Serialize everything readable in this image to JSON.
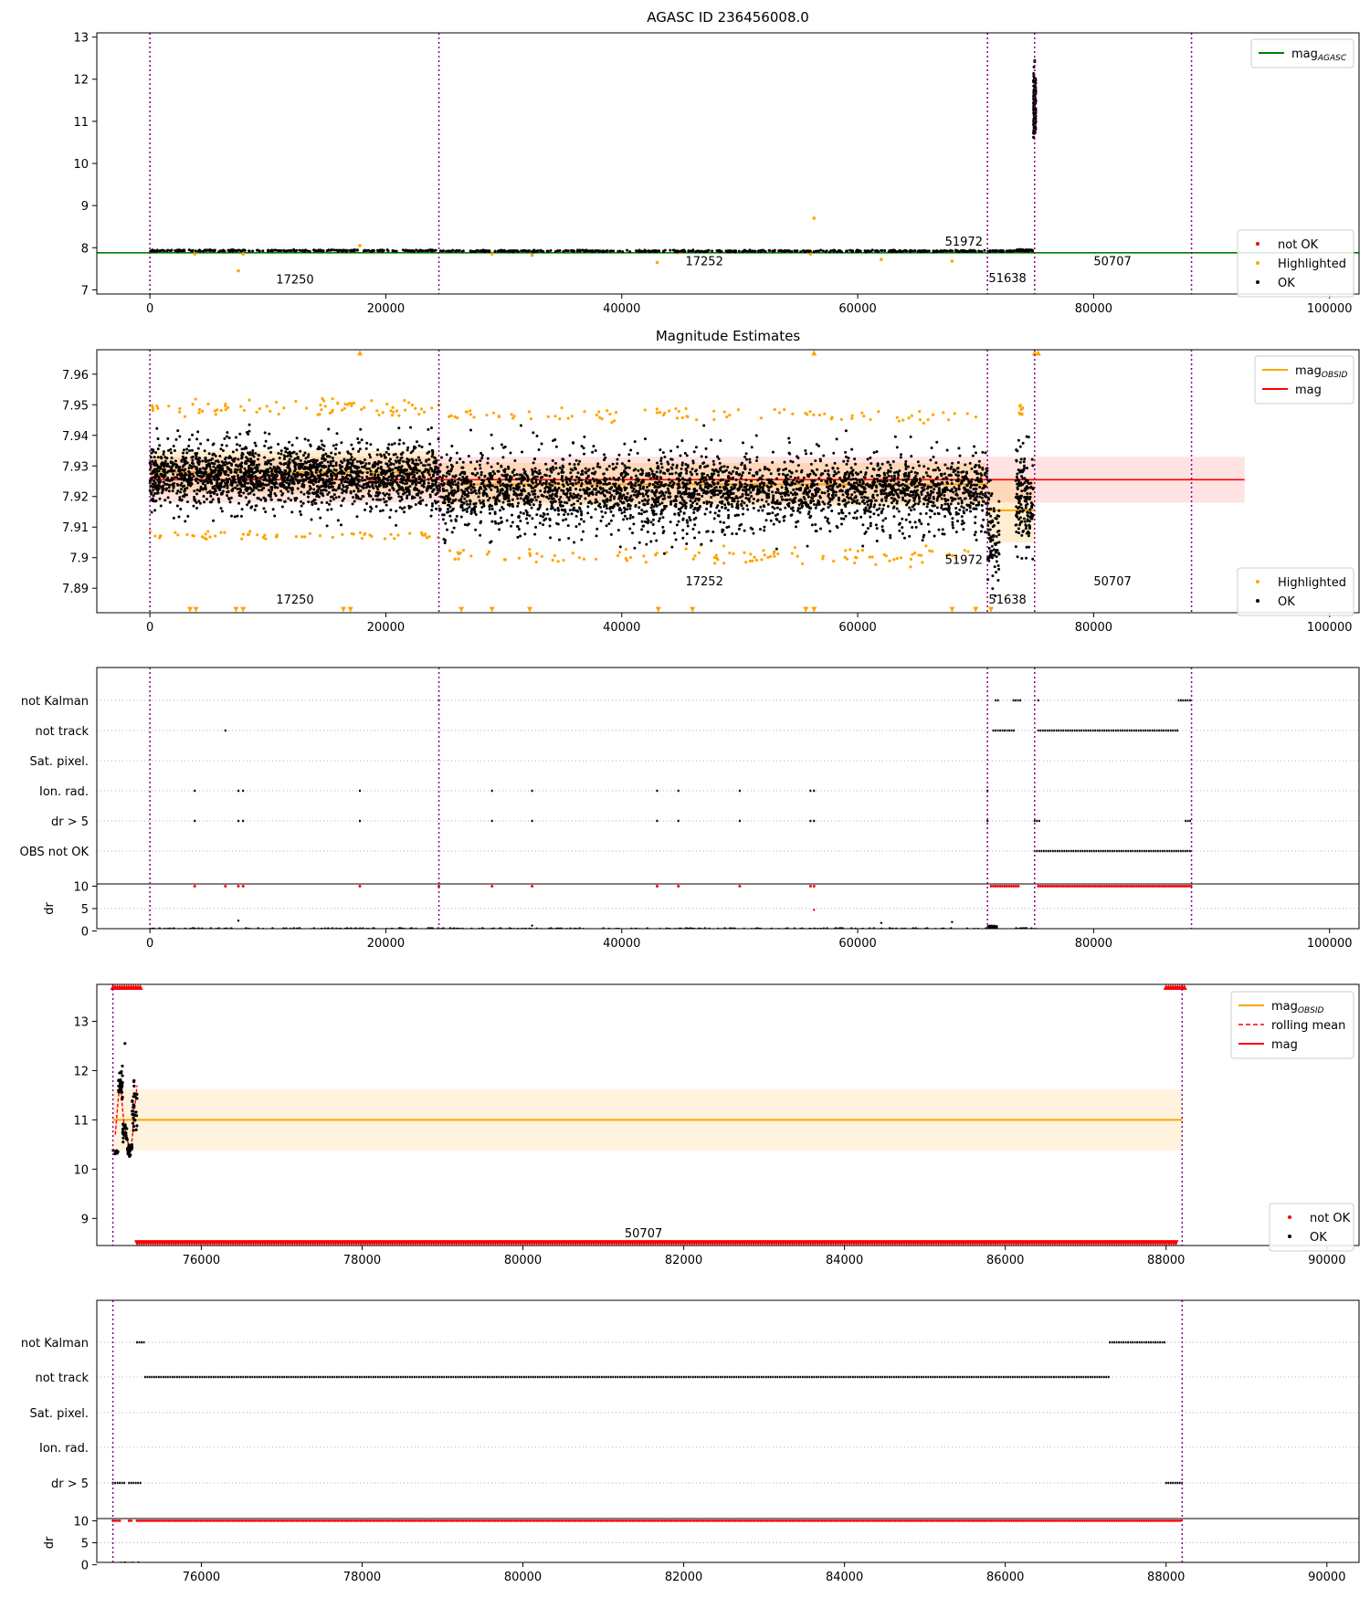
{
  "panels": [
    {
      "id": "agasc",
      "title": "AGASC ID 236456008.0",
      "xlim": [
        -4500,
        102500
      ],
      "ylim": [
        6.9,
        13.1
      ],
      "yticks": [
        7,
        8,
        9,
        10,
        11,
        12,
        13
      ],
      "xticks": [
        0,
        20000,
        40000,
        60000,
        80000,
        100000
      ],
      "vlines": [
        0,
        24500,
        71000,
        75000,
        88300
      ],
      "hline": {
        "y": 7.88,
        "color": "#008000",
        "x0": -4500,
        "x1": 102500
      },
      "segments": [
        {
          "x0": 0,
          "x1": 24500,
          "y0": 7.9,
          "y1": 7.96,
          "n": 260,
          "color": "#000000"
        },
        {
          "x0": 24500,
          "x1": 71000,
          "y0": 7.89,
          "y1": 7.95,
          "n": 480,
          "color": "#000000"
        },
        {
          "x0": 71000,
          "x1": 73400,
          "y0": 7.9,
          "y1": 7.94,
          "n": 40,
          "color": "#000000"
        },
        {
          "x0": 73400,
          "x1": 74900,
          "y0": 7.9,
          "y1": 7.97,
          "n": 40,
          "color": "#000000"
        },
        {
          "x0": 74900,
          "x1": 75100,
          "y0": 10.2,
          "y1": 12.6,
          "n": 160,
          "color": "#000000"
        }
      ],
      "outliers": [
        {
          "x": 3800,
          "y": 7.85
        },
        {
          "x": 7500,
          "y": 7.45
        },
        {
          "x": 7900,
          "y": 7.85
        },
        {
          "x": 17800,
          "y": 8.05
        },
        {
          "x": 29000,
          "y": 7.85
        },
        {
          "x": 32400,
          "y": 7.82
        },
        {
          "x": 43000,
          "y": 7.65
        },
        {
          "x": 44800,
          "y": 7.88
        },
        {
          "x": 56000,
          "y": 7.85
        },
        {
          "x": 56300,
          "y": 8.7
        },
        {
          "x": 62000,
          "y": 7.72
        },
        {
          "x": 68000,
          "y": 7.68
        }
      ],
      "labels": [
        {
          "text": "17250",
          "x": 12300,
          "y": 7.15
        },
        {
          "text": "17252",
          "x": 47000,
          "y": 7.58
        },
        {
          "text": "51972",
          "x": 69000,
          "y": 8.05
        },
        {
          "text": "51638",
          "x": 72700,
          "y": 7.18
        },
        {
          "text": "50707",
          "x": 81600,
          "y": 7.58
        }
      ],
      "legend_top": [
        {
          "label": "mag",
          "sub": "AGASC",
          "color": "#008000",
          "kind": "line"
        }
      ],
      "legend_bottom": [
        {
          "label": "not OK",
          "color": "#ff0000",
          "kind": "dot"
        },
        {
          "label": "Highlighted",
          "color": "#ffa500",
          "kind": "dot"
        },
        {
          "label": "OK",
          "color": "#000000",
          "kind": "dot"
        }
      ]
    },
    {
      "id": "estimates",
      "title": "Magnitude Estimates",
      "xlim": [
        -4500,
        102500
      ],
      "ylim": [
        7.882,
        7.968
      ],
      "yticks": [
        7.89,
        7.9,
        7.91,
        7.92,
        7.93,
        7.94,
        7.95,
        7.96
      ],
      "xticks": [
        0,
        20000,
        40000,
        60000,
        80000,
        100000
      ],
      "vlines": [
        0,
        24500,
        71000,
        75000,
        88300
      ],
      "mag_band": {
        "x0": 0,
        "x1": 92800,
        "y": 7.9255,
        "lo": 7.918,
        "hi": 7.933
      },
      "obsid_bands": [
        {
          "x0": 0,
          "x1": 24500,
          "y": 7.928,
          "lo": 7.921,
          "hi": 7.935
        },
        {
          "x0": 24500,
          "x1": 71000,
          "y": 7.924,
          "lo": 7.917,
          "hi": 7.931
        },
        {
          "x0": 71000,
          "x1": 75000,
          "y": 7.9155,
          "lo": 7.905,
          "hi": 7.926
        }
      ],
      "segments": [
        {
          "x0": 0,
          "x1": 24500,
          "y0": 7.908,
          "y1": 7.946,
          "n": 1100,
          "color": "#000000"
        },
        {
          "x0": 0,
          "x1": 24500,
          "y0": 7.917,
          "y1": 7.936,
          "n": 1000,
          "color": "#000000"
        },
        {
          "x0": 24500,
          "x1": 71000,
          "y0": 7.899,
          "y1": 7.944,
          "n": 1700,
          "color": "#000000"
        },
        {
          "x0": 24500,
          "x1": 71000,
          "y0": 7.912,
          "y1": 7.933,
          "n": 1400,
          "color": "#000000"
        },
        {
          "x0": 71000,
          "x1": 72000,
          "y0": 7.885,
          "y1": 7.93,
          "n": 90,
          "color": "#000000"
        },
        {
          "x0": 73400,
          "x1": 74900,
          "y0": 7.893,
          "y1": 7.945,
          "n": 160,
          "color": "#000000"
        }
      ],
      "orange_clouds": [
        {
          "x0": 0,
          "x1": 24500,
          "y0": 7.945,
          "y1": 7.953,
          "n": 80
        },
        {
          "x0": 0,
          "x1": 24500,
          "y0": 7.905,
          "y1": 7.91,
          "n": 60
        },
        {
          "x0": 24500,
          "x1": 71000,
          "y0": 7.943,
          "y1": 7.95,
          "n": 90
        },
        {
          "x0": 24500,
          "x1": 71000,
          "y0": 7.896,
          "y1": 7.905,
          "n": 110
        },
        {
          "x0": 73700,
          "x1": 74000,
          "y0": 7.945,
          "y1": 7.953,
          "n": 10
        }
      ],
      "triangles": [
        {
          "x": 3400,
          "y": 7.883
        },
        {
          "x": 3900,
          "y": 7.883
        },
        {
          "x": 7300,
          "y": 7.883
        },
        {
          "x": 7900,
          "y": 7.883
        },
        {
          "x": 16400,
          "y": 7.883
        },
        {
          "x": 17000,
          "y": 7.883
        },
        {
          "x": 26400,
          "y": 7.883
        },
        {
          "x": 29000,
          "y": 7.883
        },
        {
          "x": 32200,
          "y": 7.883
        },
        {
          "x": 43100,
          "y": 7.883
        },
        {
          "x": 46000,
          "y": 7.883
        },
        {
          "x": 55600,
          "y": 7.883
        },
        {
          "x": 56300,
          "y": 7.883
        },
        {
          "x": 68000,
          "y": 7.883
        },
        {
          "x": 70000,
          "y": 7.883
        },
        {
          "x": 71300,
          "y": 7.883
        },
        {
          "x": 17800,
          "y": 7.967
        },
        {
          "x": 56300,
          "y": 7.967
        },
        {
          "x": 75000,
          "y": 7.967
        },
        {
          "x": 75300,
          "y": 7.967
        }
      ],
      "labels": [
        {
          "text": "17250",
          "x": 12300,
          "y": 7.885
        },
        {
          "text": "17252",
          "x": 47000,
          "y": 7.891
        },
        {
          "text": "51972",
          "x": 69000,
          "y": 7.898
        },
        {
          "text": "51638",
          "x": 72700,
          "y": 7.885
        },
        {
          "text": "50707",
          "x": 81600,
          "y": 7.891
        }
      ],
      "legend_top": [
        {
          "label": "mag",
          "sub": "OBSID",
          "color": "#ffa500",
          "kind": "line"
        },
        {
          "label": "mag",
          "sub": "",
          "color": "#ff0000",
          "kind": "line"
        }
      ],
      "legend_bottom": [
        {
          "label": "Highlighted",
          "color": "#ffa500",
          "kind": "dot"
        },
        {
          "label": "OK",
          "color": "#000000",
          "kind": "dot"
        }
      ]
    },
    {
      "id": "flags_full",
      "xlim": [
        -4500,
        102500
      ],
      "xticks": [
        0,
        20000,
        40000,
        60000,
        80000,
        100000
      ],
      "vlines": [
        0,
        24500,
        71000,
        75000,
        88300
      ],
      "flag_names": [
        "not Kalman",
        "not track",
        "Sat. pixel.",
        "Ion. rad.",
        "dr > 5",
        "OBS not OK"
      ],
      "flag_ranges": [
        {
          "row": 0,
          "x0": 71700,
          "x1": 72000
        },
        {
          "row": 0,
          "x0": 73200,
          "x1": 73800
        },
        {
          "row": 0,
          "x0": 75300,
          "x1": 75400
        },
        {
          "row": 0,
          "x0": 87200,
          "x1": 88200
        },
        {
          "row": 1,
          "x0": 71500,
          "x1": 73400
        },
        {
          "row": 1,
          "x0": 75300,
          "x1": 87200
        },
        {
          "row": 4,
          "x0": 75000,
          "x1": 75500
        },
        {
          "row": 4,
          "x0": 87800,
          "x1": 88200
        },
        {
          "row": 5,
          "x0": 75000,
          "x1": 88300
        }
      ],
      "flag_points": [
        {
          "row": 0,
          "x": 24500
        },
        {
          "row": 1,
          "x": 6400
        },
        {
          "row": 3,
          "x": 3800
        },
        {
          "row": 3,
          "x": 7500
        },
        {
          "row": 3,
          "x": 7900
        },
        {
          "row": 3,
          "x": 17800
        },
        {
          "row": 3,
          "x": 29000
        },
        {
          "row": 3,
          "x": 32400
        },
        {
          "row": 3,
          "x": 43000
        },
        {
          "row": 3,
          "x": 44800
        },
        {
          "row": 3,
          "x": 50000
        },
        {
          "row": 3,
          "x": 56000
        },
        {
          "row": 3,
          "x": 56300
        },
        {
          "row": 3,
          "x": 71000
        },
        {
          "row": 4,
          "x": 3800
        },
        {
          "row": 4,
          "x": 7500
        },
        {
          "row": 4,
          "x": 7900
        },
        {
          "row": 4,
          "x": 17800
        },
        {
          "row": 4,
          "x": 29000
        },
        {
          "row": 4,
          "x": 32400
        },
        {
          "row": 4,
          "x": 43000
        },
        {
          "row": 4,
          "x": 44800
        },
        {
          "row": 4,
          "x": 50000
        },
        {
          "row": 4,
          "x": 56000
        },
        {
          "row": 4,
          "x": 56300
        },
        {
          "row": 4,
          "x": 71000
        }
      ],
      "dr_ylabel": "dr",
      "dr_yticks": [
        0,
        5,
        10
      ],
      "dr_ylim": [
        -0.5,
        10.5
      ],
      "dr_segments": [
        {
          "x0": 0,
          "x1": 71000,
          "y0": 0.0,
          "y1": 0.6,
          "n": 900
        },
        {
          "x0": 71000,
          "x1": 71800,
          "y0": 0.0,
          "y1": 1.2,
          "n": 30
        },
        {
          "x0": 73400,
          "x1": 74900,
          "y0": 0.1,
          "y1": 0.6,
          "n": 40
        }
      ],
      "dr_points": [
        {
          "x": 7500,
          "y": 2.3
        },
        {
          "x": 56300,
          "y": 4.7
        },
        {
          "x": 62000,
          "y": 1.8
        },
        {
          "x": 68000,
          "y": 2.0
        },
        {
          "x": 32400,
          "y": 1.2
        }
      ],
      "dr_red_ranges": [
        {
          "x0": 71300,
          "x1": 73700,
          "y": 10
        },
        {
          "x0": 75300,
          "x1": 88300,
          "y": 10
        },
        {
          "x0": 74800,
          "x1": 75300,
          "y": 0.4
        }
      ],
      "dr_red_points": [
        3800,
        6400,
        7500,
        7900,
        17800,
        24500,
        29000,
        32400,
        43000,
        44800,
        50000,
        56000,
        56300
      ]
    },
    {
      "id": "zoom_mag",
      "xlim": [
        74700,
        90400
      ],
      "ylim": [
        8.45,
        13.75
      ],
      "yticks": [
        9,
        10,
        11,
        12,
        13
      ],
      "xticks": [
        76000,
        78000,
        80000,
        82000,
        84000,
        86000,
        88000,
        90000
      ],
      "vlines": [
        74900,
        88200
      ],
      "obsid_band": {
        "x0": 74900,
        "x1": 88200,
        "y": 11.0,
        "lo": 10.38,
        "hi": 11.62
      },
      "ok_segments": [
        {
          "x0": 74900,
          "x1": 74970,
          "y0": 10.25,
          "y1": 10.45,
          "n": 10
        },
        {
          "x0": 74970,
          "x1": 75020,
          "y0": 11.2,
          "y1": 12.2,
          "n": 30
        },
        {
          "x0": 75020,
          "x1": 75080,
          "y0": 10.5,
          "y1": 11.0,
          "n": 25
        },
        {
          "x0": 75080,
          "x1": 75140,
          "y0": 10.2,
          "y1": 10.6,
          "n": 25
        },
        {
          "x0": 75140,
          "x1": 75200,
          "y0": 10.5,
          "y1": 12.0,
          "n": 30
        }
      ],
      "ok_points": [
        {
          "x": 75050,
          "y": 12.55
        }
      ],
      "rolling": [
        [
          74930,
          10.7
        ],
        [
          74960,
          11.3
        ],
        [
          74990,
          11.8
        ],
        [
          75010,
          11.4
        ],
        [
          75040,
          10.9
        ],
        [
          75080,
          10.6
        ],
        [
          75110,
          10.35
        ],
        [
          75140,
          10.6
        ],
        [
          75170,
          11.2
        ],
        [
          75200,
          11.7
        ]
      ],
      "red_top_ranges": [
        {
          "x0": 74900,
          "x1": 75250
        },
        {
          "x0": 88000,
          "x1": 88250
        }
      ],
      "red_bottom_range": {
        "x0": 75200,
        "x1": 88150,
        "y": 8.5
      },
      "labels": [
        {
          "text": "50707",
          "x": 81500,
          "y": 8.62
        }
      ],
      "legend_top": [
        {
          "label": "mag",
          "sub": "OBSID",
          "color": "#ffa500",
          "kind": "line"
        },
        {
          "label": "rolling mean",
          "sub": "",
          "color": "#ff0000",
          "kind": "dash"
        },
        {
          "label": "mag",
          "sub": "",
          "color": "#ff0000",
          "kind": "line"
        }
      ],
      "legend_bottom": [
        {
          "label": "not OK",
          "color": "#ff0000",
          "kind": "dot"
        },
        {
          "label": "OK",
          "color": "#000000",
          "kind": "dot"
        }
      ]
    },
    {
      "id": "flags_zoom",
      "xlim": [
        74700,
        90400
      ],
      "xticks": [
        76000,
        78000,
        80000,
        82000,
        84000,
        86000,
        88000,
        90000
      ],
      "vlines": [
        74900,
        88200
      ],
      "flag_names": [
        "not Kalman",
        "not track",
        "Sat. pixel.",
        "Ion. rad.",
        "dr > 5"
      ],
      "flag_ranges": [
        {
          "row": 0,
          "x0": 75200,
          "x1": 75300
        },
        {
          "row": 0,
          "x0": 87300,
          "x1": 88000
        },
        {
          "row": 1,
          "x0": 75300,
          "x1": 87300
        },
        {
          "row": 4,
          "x0": 74900,
          "x1": 75050
        },
        {
          "row": 4,
          "x0": 75100,
          "x1": 75250
        },
        {
          "row": 4,
          "x0": 88000,
          "x1": 88200
        }
      ],
      "flag_points": [],
      "dr_ylabel": "dr",
      "dr_yticks": [
        0,
        5,
        10
      ],
      "dr_ylim": [
        -0.5,
        10.5
      ],
      "dr_segments": [
        {
          "x0": 74900,
          "x1": 75250,
          "y0": 0.1,
          "y1": 0.5,
          "n": 30
        }
      ],
      "dr_points": [],
      "dr_red_ranges": [
        {
          "x0": 74900,
          "x1": 75000,
          "y": 10
        },
        {
          "x0": 75100,
          "x1": 75150,
          "y": 10
        },
        {
          "x0": 75200,
          "x1": 88200,
          "y": 10
        }
      ],
      "dr_red_points": []
    }
  ]
}
